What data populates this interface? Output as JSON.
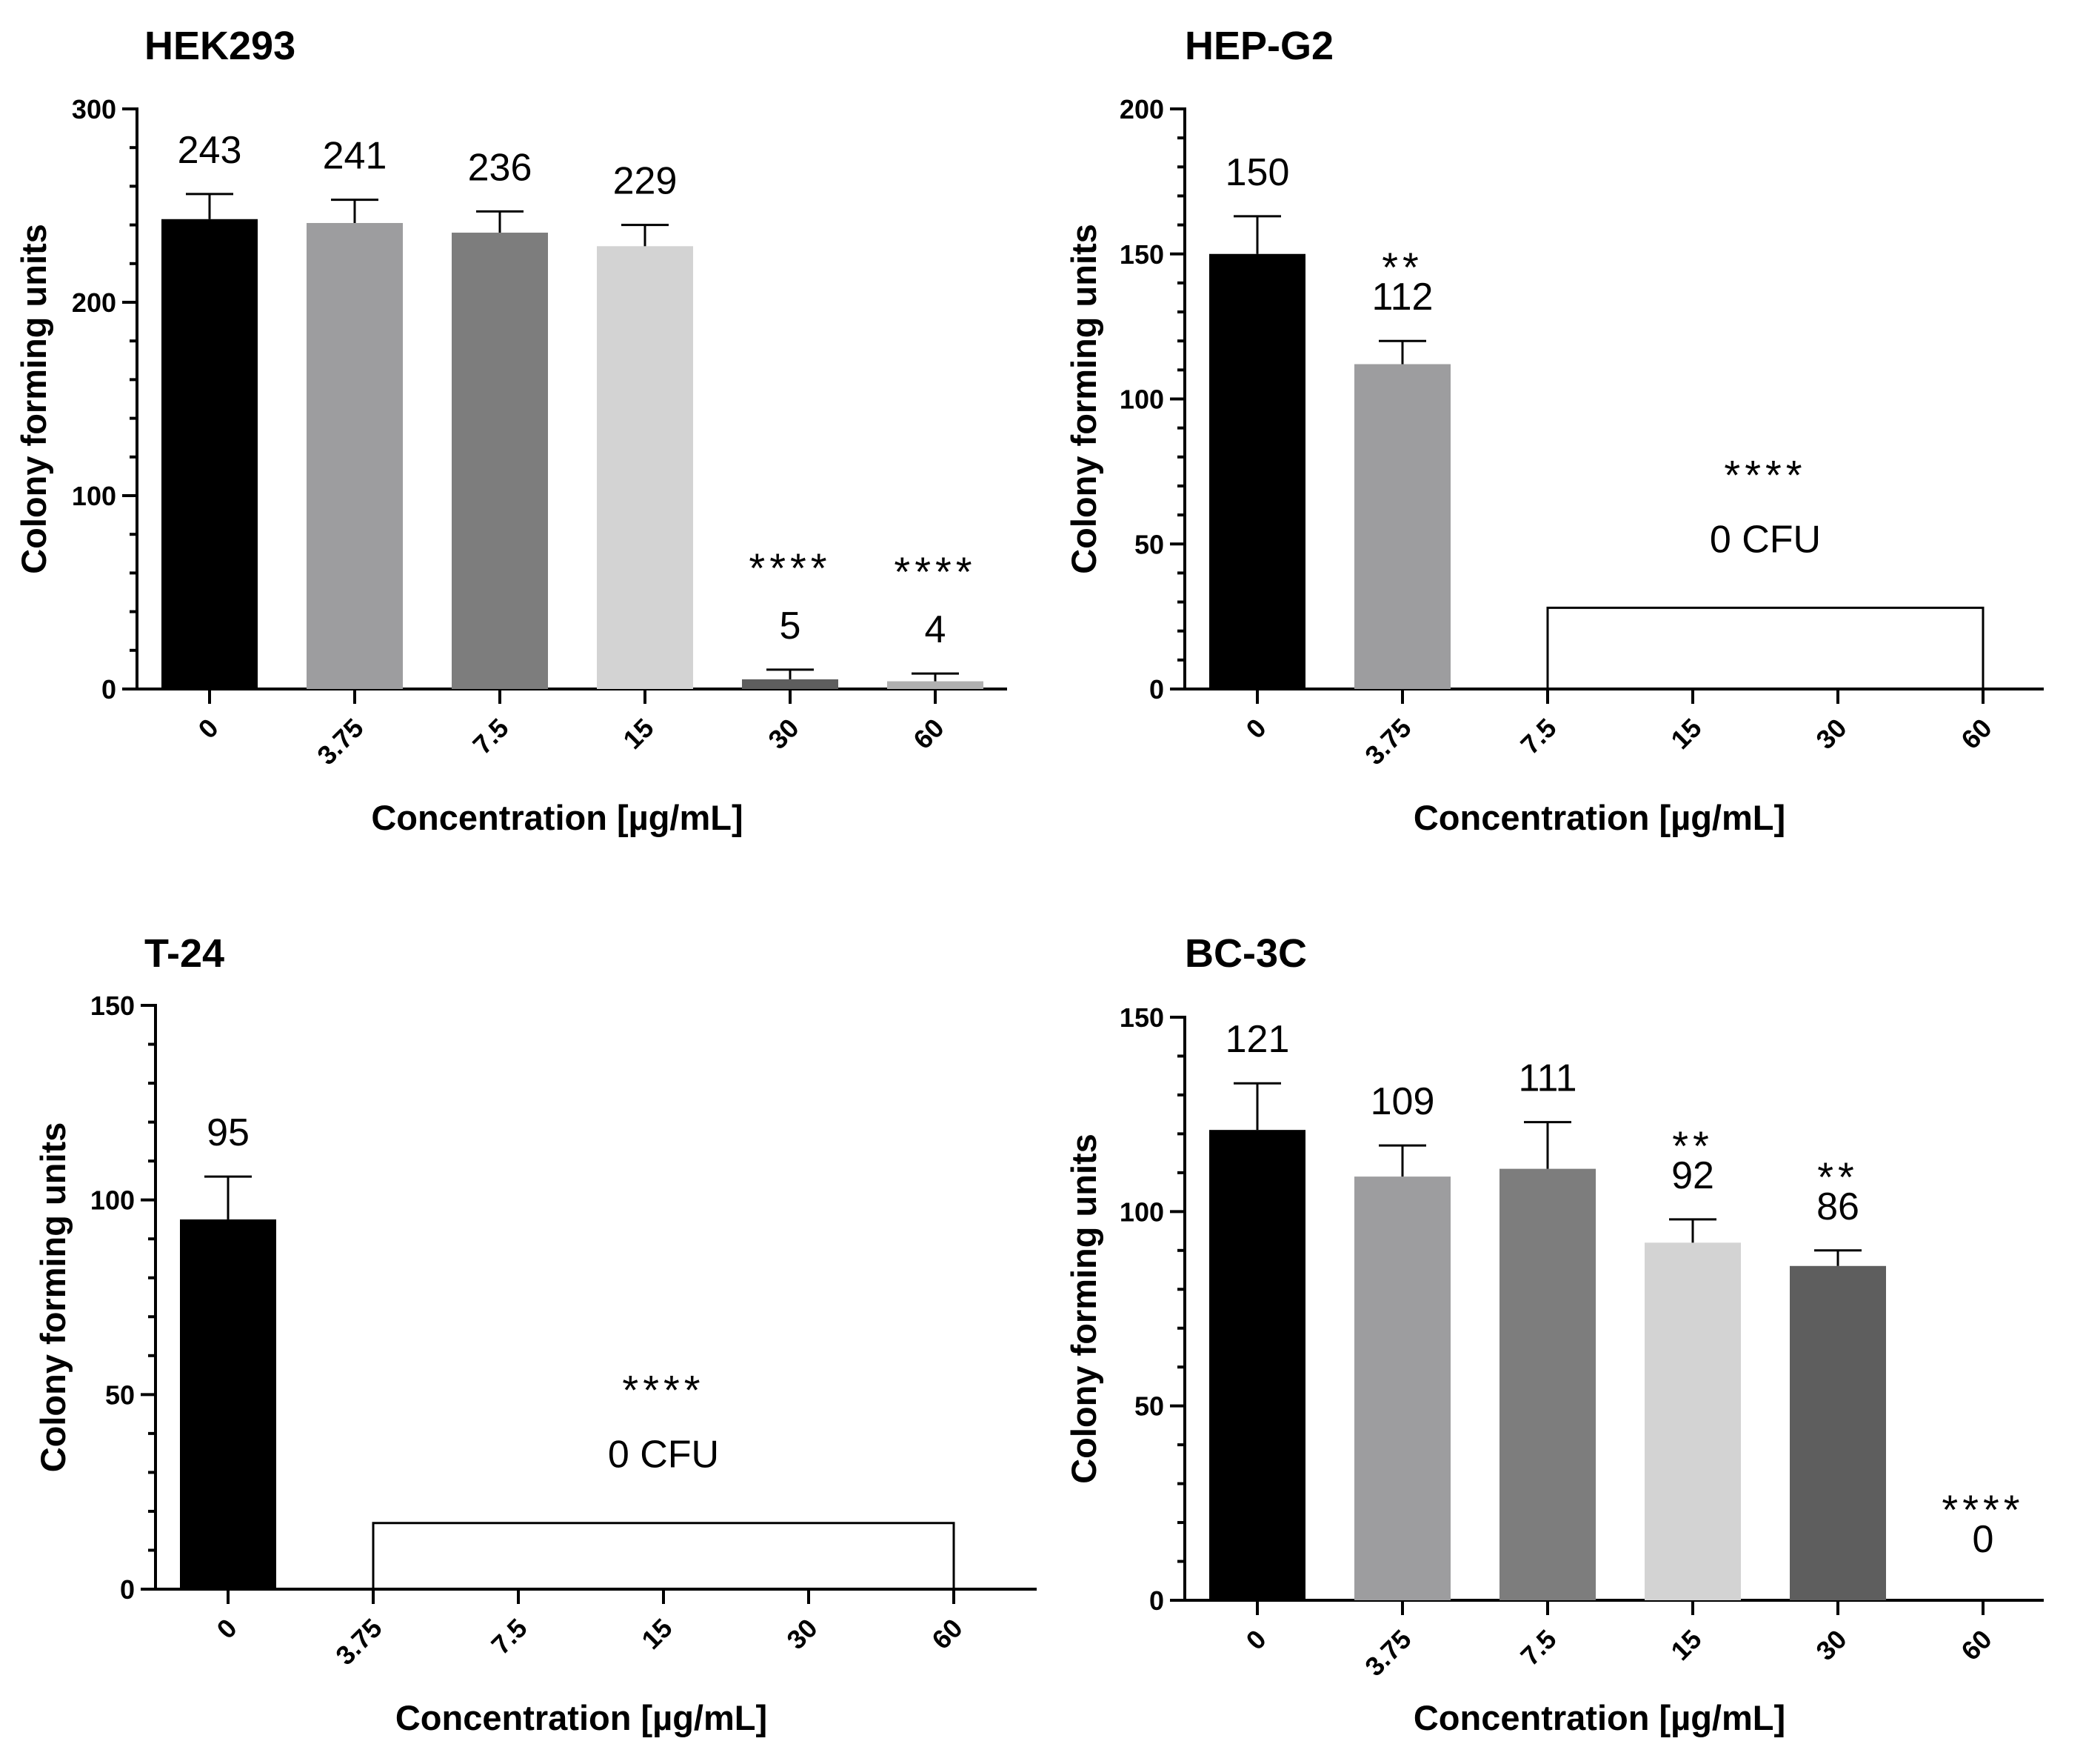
{
  "chart_data": [
    {
      "type": "bar",
      "title": "HEK293",
      "xlabel": "Concentration [µg/mL]",
      "ylabel": "Colony forming units",
      "ylim": [
        0,
        300
      ],
      "yticks": [
        "0",
        "100",
        "200",
        "300"
      ],
      "categories": [
        "0",
        "3.75",
        "7.5",
        "15",
        "30",
        "60"
      ],
      "values": [
        243,
        241,
        236,
        229,
        5,
        4
      ],
      "errors": [
        13,
        12,
        11,
        11,
        5,
        4
      ],
      "colors": [
        "#000000",
        "#9d9d9f",
        "#7d7d7d",
        "#d3d3d3",
        "#5e5e5e",
        "#b0b0b0"
      ],
      "value_labels": [
        "243",
        "241",
        "236",
        "229",
        "5",
        "4"
      ],
      "significance": [
        "",
        "",
        "",
        "",
        "****",
        "****"
      ],
      "zero_box": null
    },
    {
      "type": "bar",
      "title": "HEP-G2",
      "xlabel": "Concentration [µg/mL]",
      "ylabel": "Colony forming units",
      "ylim": [
        0,
        200
      ],
      "yticks": [
        "0",
        "50",
        "100",
        "150",
        "200"
      ],
      "categories": [
        "0",
        "3.75",
        "7.5",
        "15",
        "30",
        "60"
      ],
      "values": [
        150,
        112,
        0,
        0,
        0,
        0
      ],
      "errors": [
        13,
        8,
        0,
        0,
        0,
        0
      ],
      "colors": [
        "#000000",
        "#9d9d9f",
        "#ffffff",
        "#ffffff",
        "#ffffff",
        "#ffffff"
      ],
      "value_labels": [
        "150",
        "112",
        "",
        "",
        "",
        ""
      ],
      "significance": [
        "",
        "**",
        "",
        "",
        "",
        ""
      ],
      "zero_box": {
        "from": "7.5",
        "to": "60",
        "height": 28,
        "label": "0 CFU",
        "significance": "****"
      }
    },
    {
      "type": "bar",
      "title": "T-24",
      "xlabel": "Concentration [µg/mL]",
      "ylabel": "Colony forming units",
      "ylim": [
        0,
        150
      ],
      "yticks": [
        "0",
        "50",
        "100",
        "150"
      ],
      "categories": [
        "0",
        "3.75",
        "7.5",
        "15",
        "30",
        "60"
      ],
      "values": [
        95,
        0,
        0,
        0,
        0,
        0
      ],
      "errors": [
        11,
        0,
        0,
        0,
        0,
        0
      ],
      "colors": [
        "#000000",
        "#ffffff",
        "#ffffff",
        "#ffffff",
        "#ffffff",
        "#ffffff"
      ],
      "value_labels": [
        "95",
        "",
        "",
        "",
        "",
        ""
      ],
      "significance": [
        "",
        "",
        "",
        "",
        "",
        ""
      ],
      "zero_box": {
        "from": "3.75",
        "to": "60",
        "height": 17,
        "label": "0 CFU",
        "significance": "****"
      }
    },
    {
      "type": "bar",
      "title": "BC-3C",
      "xlabel": "Concentration [µg/mL]",
      "ylabel": "Colony forming units",
      "ylim": [
        0,
        150
      ],
      "yticks": [
        "0",
        "50",
        "100",
        "150"
      ],
      "categories": [
        "0",
        "3.75",
        "7.5",
        "15",
        "30",
        "60"
      ],
      "values": [
        121,
        109,
        111,
        92,
        86,
        0
      ],
      "errors": [
        12,
        8,
        12,
        6,
        4,
        0
      ],
      "colors": [
        "#000000",
        "#9d9d9f",
        "#7d7d7d",
        "#d3d3d3",
        "#5e5e5e",
        "#ffffff"
      ],
      "value_labels": [
        "121",
        "109",
        "111",
        "92",
        "86",
        "0"
      ],
      "significance": [
        "",
        "",
        "",
        "**",
        "**",
        "****"
      ],
      "zero_box": null
    }
  ]
}
